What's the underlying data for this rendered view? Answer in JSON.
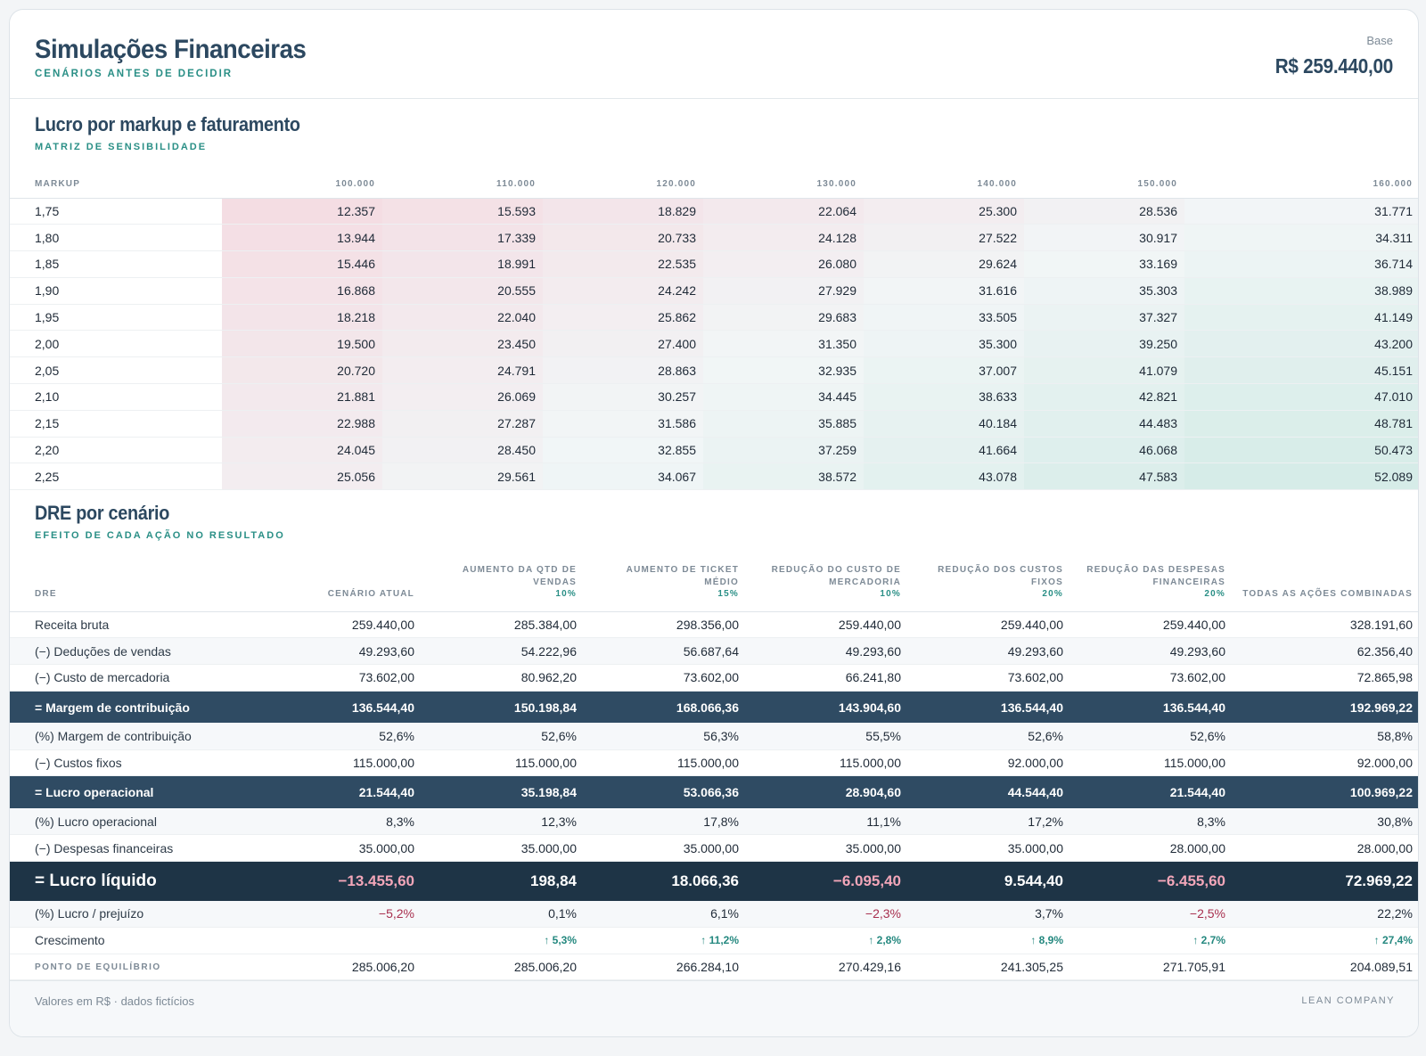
{
  "header": {
    "title": "Simulações Financeiras",
    "subtitle": "CENÁRIOS ANTES DE DECIDIR",
    "base_label": "Base",
    "base_value": "R$ 259.440,00"
  },
  "matrix": {
    "title": "Lucro por markup e faturamento",
    "subtitle": "MATRIZ DE SENSIBILIDADE",
    "corner_label": "MARKUP",
    "columns": [
      "100.000",
      "110.000",
      "120.000",
      "130.000",
      "140.000",
      "150.000",
      "160.000"
    ],
    "rows": [
      {
        "markup": "1,75",
        "values": [
          "12.357",
          "15.593",
          "18.829",
          "22.064",
          "25.300",
          "28.536",
          "31.771"
        ]
      },
      {
        "markup": "1,80",
        "values": [
          "13.944",
          "17.339",
          "20.733",
          "24.128",
          "27.522",
          "30.917",
          "34.311"
        ]
      },
      {
        "markup": "1,85",
        "values": [
          "15.446",
          "18.991",
          "22.535",
          "26.080",
          "29.624",
          "33.169",
          "36.714"
        ]
      },
      {
        "markup": "1,90",
        "values": [
          "16.868",
          "20.555",
          "24.242",
          "27.929",
          "31.616",
          "35.303",
          "38.989"
        ]
      },
      {
        "markup": "1,95",
        "values": [
          "18.218",
          "22.040",
          "25.862",
          "29.683",
          "33.505",
          "37.327",
          "41.149"
        ]
      },
      {
        "markup": "2,00",
        "values": [
          "19.500",
          "23.450",
          "27.400",
          "31.350",
          "35.300",
          "39.250",
          "43.200"
        ]
      },
      {
        "markup": "2,05",
        "values": [
          "20.720",
          "24.791",
          "28.863",
          "32.935",
          "37.007",
          "41.079",
          "45.151"
        ]
      },
      {
        "markup": "2,10",
        "values": [
          "21.881",
          "26.069",
          "30.257",
          "34.445",
          "38.633",
          "42.821",
          "47.010"
        ]
      },
      {
        "markup": "2,15",
        "values": [
          "22.988",
          "27.287",
          "31.586",
          "35.885",
          "40.184",
          "44.483",
          "48.781"
        ]
      },
      {
        "markup": "2,20",
        "values": [
          "24.045",
          "28.450",
          "32.855",
          "37.259",
          "41.664",
          "46.068",
          "50.473"
        ]
      },
      {
        "markup": "2,25",
        "values": [
          "25.056",
          "29.561",
          "34.067",
          "38.572",
          "43.078",
          "47.583",
          "52.089"
        ]
      }
    ],
    "colors": {
      "low": "#f4dde3",
      "mid": "#f2f6f7",
      "high": "#d6ece8"
    }
  },
  "dre": {
    "title": "DRE por cenário",
    "subtitle": "EFEITO DE CADA AÇÃO NO RESULTADO",
    "corner_label": "DRE",
    "columns": [
      {
        "label": "CENÁRIO ATUAL",
        "pct": ""
      },
      {
        "label": "AUMENTO DA QTD DE VENDAS",
        "pct": "10%"
      },
      {
        "label": "AUMENTO DE TICKET MÉDIO",
        "pct": "15%"
      },
      {
        "label": "REDUÇÃO DO CUSTO DE MERCADORIA",
        "pct": "10%"
      },
      {
        "label": "REDUÇÃO DOS CUSTOS FIXOS",
        "pct": "20%"
      },
      {
        "label": "REDUÇÃO DAS DESPESAS FINANCEIRAS",
        "pct": "20%"
      },
      {
        "label": "TODAS AS AÇÕES COMBINADAS",
        "pct": ""
      }
    ],
    "rows": [
      {
        "label": "Receita bruta",
        "style": "plain",
        "values": [
          "259.440,00",
          "285.384,00",
          "298.356,00",
          "259.440,00",
          "259.440,00",
          "259.440,00",
          "328.191,60"
        ]
      },
      {
        "label": "(−) Deduções de vendas",
        "style": "alt",
        "values": [
          "49.293,60",
          "54.222,96",
          "56.687,64",
          "49.293,60",
          "49.293,60",
          "49.293,60",
          "62.356,40"
        ]
      },
      {
        "label": "(−) Custo de mercadoria",
        "style": "plain",
        "values": [
          "73.602,00",
          "80.962,20",
          "73.602,00",
          "66.241,80",
          "73.602,00",
          "73.602,00",
          "72.865,98"
        ]
      },
      {
        "label": "= Margem de contribuição",
        "style": "strong",
        "values": [
          "136.544,40",
          "150.198,84",
          "168.066,36",
          "143.904,60",
          "136.544,40",
          "136.544,40",
          "192.969,22"
        ]
      },
      {
        "label": "(%) Margem de contribuição",
        "style": "alt",
        "values": [
          "52,6%",
          "52,6%",
          "56,3%",
          "55,5%",
          "52,6%",
          "52,6%",
          "58,8%"
        ]
      },
      {
        "label": "(−) Custos fixos",
        "style": "plain",
        "values": [
          "115.000,00",
          "115.000,00",
          "115.000,00",
          "115.000,00",
          "92.000,00",
          "115.000,00",
          "92.000,00"
        ]
      },
      {
        "label": "= Lucro operacional",
        "style": "strong",
        "values": [
          "21.544,40",
          "35.198,84",
          "53.066,36",
          "28.904,60",
          "44.544,40",
          "21.544,40",
          "100.969,22"
        ]
      },
      {
        "label": "(%) Lucro operacional",
        "style": "alt",
        "values": [
          "8,3%",
          "12,3%",
          "17,8%",
          "11,1%",
          "17,2%",
          "8,3%",
          "30,8%"
        ]
      },
      {
        "label": "(−) Despesas financeiras",
        "style": "plain",
        "values": [
          "35.000,00",
          "35.000,00",
          "35.000,00",
          "35.000,00",
          "35.000,00",
          "28.000,00",
          "28.000,00"
        ]
      },
      {
        "label": "= Lucro líquido",
        "style": "net",
        "values": [
          "−13.455,60",
          "198,84",
          "18.066,36",
          "−6.095,40",
          "9.544,40",
          "−6.455,60",
          "72.969,22"
        ]
      },
      {
        "label": "(%) Lucro / prejuízo",
        "style": "alt",
        "values": [
          "−5,2%",
          "0,1%",
          "6,1%",
          "−2,3%",
          "3,7%",
          "−2,5%",
          "22,2%"
        ]
      },
      {
        "label": "Crescimento",
        "style": "grow",
        "values": [
          "",
          "↑ 5,3%",
          "↑ 11,2%",
          "↑ 2,8%",
          "↑ 8,9%",
          "↑ 2,7%",
          "↑ 27,4%"
        ]
      },
      {
        "label": "PONTO DE EQUILÍBRIO",
        "style": "be",
        "values": [
          "285.006,20",
          "285.006,20",
          "266.284,10",
          "270.429,16",
          "241.305,25",
          "271.705,91",
          "204.089,51"
        ]
      }
    ]
  },
  "footer": {
    "left": "Valores em R$ · dados fictícios",
    "right": "LEAN COMPANY"
  }
}
